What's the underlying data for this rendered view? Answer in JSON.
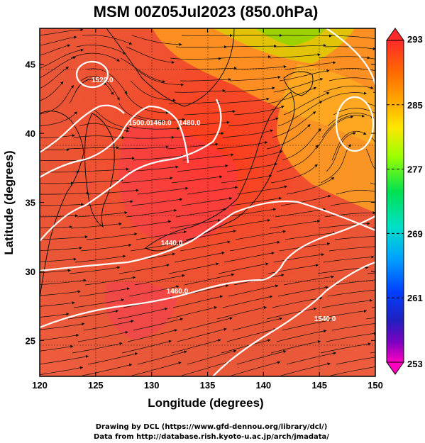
{
  "chart_data": {
    "type": "heatmap",
    "title": "MSM 00Z05Jul2023 (850.0hPa)",
    "xlabel": "Longitude (degrees)",
    "ylabel": "Latitude  (degrees)",
    "xlim": [
      120,
      150
    ],
    "ylim": [
      22.4,
      47.6
    ],
    "x_ticks": [
      "120",
      "125",
      "130",
      "135",
      "140",
      "145",
      "150"
    ],
    "y_ticks": [
      "25",
      "30",
      "35",
      "40",
      "45"
    ],
    "grid": true,
    "colorbar": {
      "min": 253,
      "max": 293,
      "ticks": [
        "293",
        "285",
        "277",
        "269",
        "261",
        "253"
      ],
      "colors": [
        "#ff2a2a",
        "#ff6a00",
        "#ffb000",
        "#ffe600",
        "#9cff00",
        "#00e050",
        "#00e0c8",
        "#00a0ff",
        "#0040ff",
        "#2020c0",
        "#8000c0",
        "#ff00c0"
      ]
    },
    "contour_labels": [
      {
        "text": "1440.0",
        "lon": 131.8,
        "lat": 31.9
      },
      {
        "text": "1460.0",
        "lon": 132.3,
        "lat": 28.4
      },
      {
        "text": "1480.0",
        "lon": 133.4,
        "lat": 40.6
      },
      {
        "text": "1460.0",
        "lon": 130.8,
        "lat": 40.6
      },
      {
        "text": "1500.0",
        "lon": 128.9,
        "lat": 40.6
      },
      {
        "text": "1520.0",
        "lon": 125.6,
        "lat": 43.7
      },
      {
        "text": "1540.0",
        "lon": 145.5,
        "lat": 26.4
      }
    ]
  },
  "credits": {
    "line1": "Drawing by DCL (https://www.gfd-dennou.org/library/dcl/)",
    "line2": "Data from http://database.rish.kyoto-u.ac.jp/arch/jmadata/"
  }
}
